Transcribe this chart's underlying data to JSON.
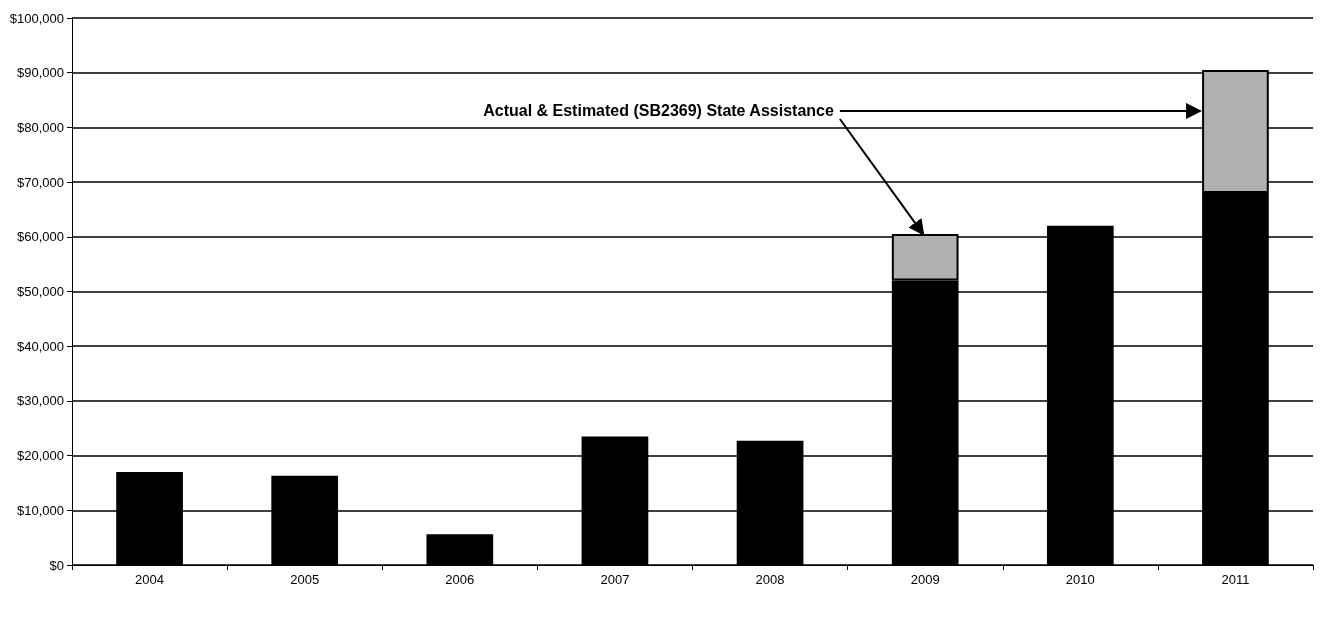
{
  "chart_data": {
    "type": "bar",
    "stacked": true,
    "categories": [
      "2004",
      "2005",
      "2006",
      "2007",
      "2008",
      "2009",
      "2010",
      "2011"
    ],
    "series": [
      {
        "color": "#000000",
        "values": [
          17000,
          16300,
          5600,
          23500,
          22700,
          52000,
          62000,
          68000
        ]
      },
      {
        "color": "#b0b0b0",
        "values": [
          null,
          null,
          null,
          null,
          null,
          8500,
          null,
          22500
        ]
      }
    ],
    "ylim": [
      0,
      100000
    ],
    "yticks": [
      {
        "value": 0,
        "label": "$0"
      },
      {
        "value": 10000,
        "label": "$10,000"
      },
      {
        "value": 20000,
        "label": "$20,000"
      },
      {
        "value": 30000,
        "label": "$30,000"
      },
      {
        "value": 40000,
        "label": "$40,000"
      },
      {
        "value": 50000,
        "label": "$50,000"
      },
      {
        "value": 60000,
        "label": "$60,000"
      },
      {
        "value": 70000,
        "label": "$70,000"
      },
      {
        "value": 80000,
        "label": "$80,000"
      },
      {
        "value": 90000,
        "label": "$90,000"
      },
      {
        "value": 100000,
        "label": "$100,000"
      }
    ],
    "grid": "y",
    "annotations": [
      {
        "text": "Actual & Estimated (SB2369) State Assistance",
        "x": "2009",
        "y": 60500
      }
    ]
  }
}
